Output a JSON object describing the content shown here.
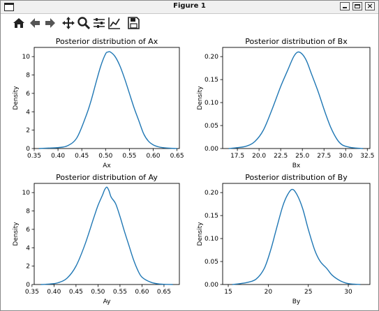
{
  "window": {
    "title": "Figure 1",
    "close_glyph": "×"
  },
  "toolbar": {
    "tools": [
      {
        "name": "home-icon"
      },
      {
        "name": "back-icon"
      },
      {
        "name": "forward-icon"
      },
      {
        "name": "pan-icon"
      },
      {
        "name": "zoom-icon"
      },
      {
        "name": "subplots-config-icon"
      },
      {
        "name": "edit-axes-icon"
      },
      {
        "name": "save-icon"
      }
    ]
  },
  "colors": {
    "line": "#1f77b4"
  },
  "chart_data": [
    {
      "type": "line",
      "title": "Posterior distribution of Ax",
      "xlabel": "Ax",
      "ylabel": "Density",
      "xlim": [
        0.35,
        0.655
      ],
      "ylim": [
        0,
        11
      ],
      "xticks": [
        "0.35",
        "0.40",
        "0.45",
        "0.50",
        "0.55",
        "0.60",
        "0.65"
      ],
      "yticks": [
        "0",
        "2",
        "4",
        "6",
        "8",
        "10"
      ],
      "x": [
        0.36,
        0.38,
        0.4,
        0.42,
        0.44,
        0.46,
        0.47,
        0.48,
        0.49,
        0.5,
        0.505,
        0.51,
        0.52,
        0.53,
        0.54,
        0.55,
        0.56,
        0.57,
        0.58,
        0.59,
        0.6,
        0.61,
        0.62,
        0.64,
        0.65
      ],
      "y": [
        0.0,
        0.05,
        0.1,
        0.3,
        1.2,
        3.7,
        5.3,
        7.2,
        9.0,
        10.3,
        10.5,
        10.5,
        10.0,
        9.0,
        7.6,
        6.0,
        4.4,
        3.0,
        1.6,
        0.8,
        0.4,
        0.2,
        0.1,
        0.02,
        0.0
      ]
    },
    {
      "type": "line",
      "title": "Posterior distribution of Bx",
      "xlabel": "Bx",
      "ylabel": "Density",
      "xlim": [
        15.8,
        32.8
      ],
      "ylim": [
        0,
        0.22
      ],
      "xticks": [
        "17.5",
        "20.0",
        "22.5",
        "25.0",
        "27.5",
        "30.0",
        "32.5"
      ],
      "yticks": [
        "0.00",
        "0.05",
        "0.10",
        "0.15",
        "0.20"
      ],
      "x": [
        16.5,
        17.5,
        18.5,
        19.5,
        20.5,
        21.5,
        22.5,
        23.3,
        24.0,
        24.5,
        25.0,
        25.5,
        26.0,
        26.8,
        27.6,
        28.3,
        29.0,
        29.6,
        30.4,
        31.2,
        32.0
      ],
      "y": [
        0.0,
        0.002,
        0.005,
        0.015,
        0.04,
        0.085,
        0.135,
        0.17,
        0.2,
        0.21,
        0.205,
        0.19,
        0.165,
        0.125,
        0.08,
        0.045,
        0.02,
        0.008,
        0.003,
        0.001,
        0.0
      ]
    },
    {
      "type": "line",
      "title": "Posterior distribution of Ay",
      "xlabel": "Ay",
      "ylabel": "Density",
      "xlim": [
        0.355,
        0.685
      ],
      "ylim": [
        0,
        11
      ],
      "xticks": [
        "0.35",
        "0.40",
        "0.45",
        "0.50",
        "0.55",
        "0.60",
        "0.65"
      ],
      "yticks": [
        "0",
        "2",
        "4",
        "6",
        "8",
        "10"
      ],
      "x": [
        0.37,
        0.39,
        0.41,
        0.43,
        0.45,
        0.47,
        0.49,
        0.5,
        0.51,
        0.515,
        0.52,
        0.525,
        0.53,
        0.54,
        0.55,
        0.56,
        0.57,
        0.58,
        0.59,
        0.6,
        0.62,
        0.64,
        0.67
      ],
      "y": [
        0.0,
        0.05,
        0.2,
        0.7,
        2.0,
        4.3,
        7.2,
        8.6,
        9.7,
        10.3,
        10.6,
        10.2,
        9.5,
        8.8,
        7.4,
        5.8,
        4.3,
        2.8,
        1.6,
        0.8,
        0.25,
        0.05,
        0.0
      ]
    },
    {
      "type": "line",
      "title": "Posterior distribution of By",
      "xlabel": "By",
      "ylabel": "Density",
      "xlim": [
        14.3,
        32.7
      ],
      "ylim": [
        0,
        0.22
      ],
      "xticks": [
        "15",
        "20",
        "25",
        "30"
      ],
      "yticks": [
        "0.00",
        "0.05",
        "0.10",
        "0.15",
        "0.20"
      ],
      "x": [
        15.5,
        16.5,
        17.5,
        18.5,
        19.5,
        20.3,
        21.0,
        21.8,
        22.4,
        23.0,
        23.6,
        24.3,
        25.0,
        25.8,
        26.5,
        27.3,
        28.0,
        29.0,
        30.0,
        31.5
      ],
      "y": [
        0.0,
        0.002,
        0.005,
        0.012,
        0.035,
        0.075,
        0.12,
        0.17,
        0.195,
        0.207,
        0.195,
        0.165,
        0.12,
        0.075,
        0.05,
        0.035,
        0.02,
        0.008,
        0.002,
        0.0
      ]
    }
  ]
}
